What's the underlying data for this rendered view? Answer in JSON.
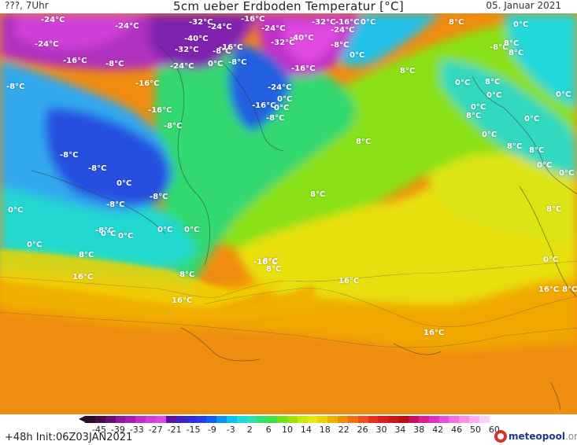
{
  "header": {
    "location": "???, 7Uhr",
    "title": "5cm ueber Erdboden Temperatur [°C]",
    "date": "05. Januar 2021"
  },
  "footer": {
    "run_info": "+48h Init:06Z03JAN2021",
    "brand_name": "meteopool",
    "brand_tld": ".org"
  },
  "legend": {
    "ticks": [
      "-45",
      "-39",
      "-33",
      "-27",
      "-21",
      "-15",
      "-9",
      "-3",
      "2",
      "6",
      "10",
      "14",
      "18",
      "22",
      "26",
      "30",
      "34",
      "38",
      "42",
      "46",
      "50",
      "60"
    ],
    "colors": [
      "#2a0a2a",
      "#4a0a4a",
      "#6a1070",
      "#8a1a9a",
      "#a020b0",
      "#c030c8",
      "#d040d8",
      "#e048e0",
      "#6010a0",
      "#4020c0",
      "#3030d0",
      "#2040e0",
      "#1060e8",
      "#1090f0",
      "#10c0f0",
      "#20d8e0",
      "#30e0b0",
      "#30e070",
      "#40e040",
      "#70e020",
      "#a0e010",
      "#c8e810",
      "#e8e810",
      "#f0d000",
      "#f0b000",
      "#f09000",
      "#f07010",
      "#f05020",
      "#e83020",
      "#d82020",
      "#c81818",
      "#b81010",
      "#c81060",
      "#d82090",
      "#e030c0",
      "#e850d8",
      "#f070e0",
      "#f890e8",
      "#fab0f0",
      "#fcd0f8"
    ]
  },
  "map_labels": [
    {
      "text": "-24°C"
    },
    {
      "text": "-24°C"
    },
    {
      "text": "-24°C"
    },
    {
      "text": "-16°C"
    },
    {
      "text": "-8°C"
    },
    {
      "text": "-16°C"
    },
    {
      "text": "-8°C"
    },
    {
      "text": "-16°C"
    },
    {
      "text": "-8°C"
    },
    {
      "text": "-8°C"
    },
    {
      "text": "-8°C"
    },
    {
      "text": "-8°C"
    },
    {
      "text": "0°C"
    },
    {
      "text": "-8°C"
    },
    {
      "text": "-8°C"
    },
    {
      "text": "0°C"
    },
    {
      "text": "0°C"
    },
    {
      "text": "0°C"
    },
    {
      "text": "0°C"
    },
    {
      "text": "0°C"
    },
    {
      "text": "0°C"
    },
    {
      "text": "8°C"
    },
    {
      "text": "16°C"
    },
    {
      "text": "16°C"
    },
    {
      "text": "8°C"
    },
    {
      "text": "-32°C"
    },
    {
      "text": "-40°C"
    },
    {
      "text": "-32°C"
    },
    {
      "text": "-24°C"
    },
    {
      "text": "-16°C"
    },
    {
      "text": "-8°C"
    },
    {
      "text": "-24°C"
    },
    {
      "text": "0°C"
    },
    {
      "text": "-8°C"
    },
    {
      "text": "-16°C"
    },
    {
      "text": "-24°C"
    },
    {
      "text": "-32°C"
    },
    {
      "text": "-40°C"
    },
    {
      "text": "-32°C"
    },
    {
      "text": "-24°C"
    },
    {
      "text": "-16°C"
    },
    {
      "text": "0°C"
    },
    {
      "text": "-8°C"
    },
    {
      "text": "0°C"
    },
    {
      "text": "-16°C"
    },
    {
      "text": "-24°C"
    },
    {
      "text": "0°C"
    },
    {
      "text": "-16°C"
    },
    {
      "text": "-8°C"
    },
    {
      "text": "0°C"
    },
    {
      "text": "8°C"
    },
    {
      "text": "8°C"
    },
    {
      "text": "8°C"
    },
    {
      "text": "8°C"
    },
    {
      "text": "16°C"
    },
    {
      "text": "16°C"
    },
    {
      "text": "8°C"
    },
    {
      "text": "-16°C"
    },
    {
      "text": "-8°C"
    },
    {
      "text": "0°C"
    },
    {
      "text": "8°C"
    },
    {
      "text": "0°C"
    },
    {
      "text": "0°C"
    },
    {
      "text": "8°C"
    },
    {
      "text": "0°C"
    },
    {
      "text": "8°C"
    },
    {
      "text": "0°C"
    },
    {
      "text": "0°C"
    },
    {
      "text": "8°C"
    },
    {
      "text": "0°C"
    },
    {
      "text": "8°C"
    },
    {
      "text": "0°C"
    },
    {
      "text": "0°C"
    },
    {
      "text": "8°C"
    },
    {
      "text": "8°C"
    },
    {
      "text": "0°C"
    },
    {
      "text": "8°C"
    },
    {
      "text": "16°C"
    },
    {
      "text": "8°C"
    }
  ]
}
